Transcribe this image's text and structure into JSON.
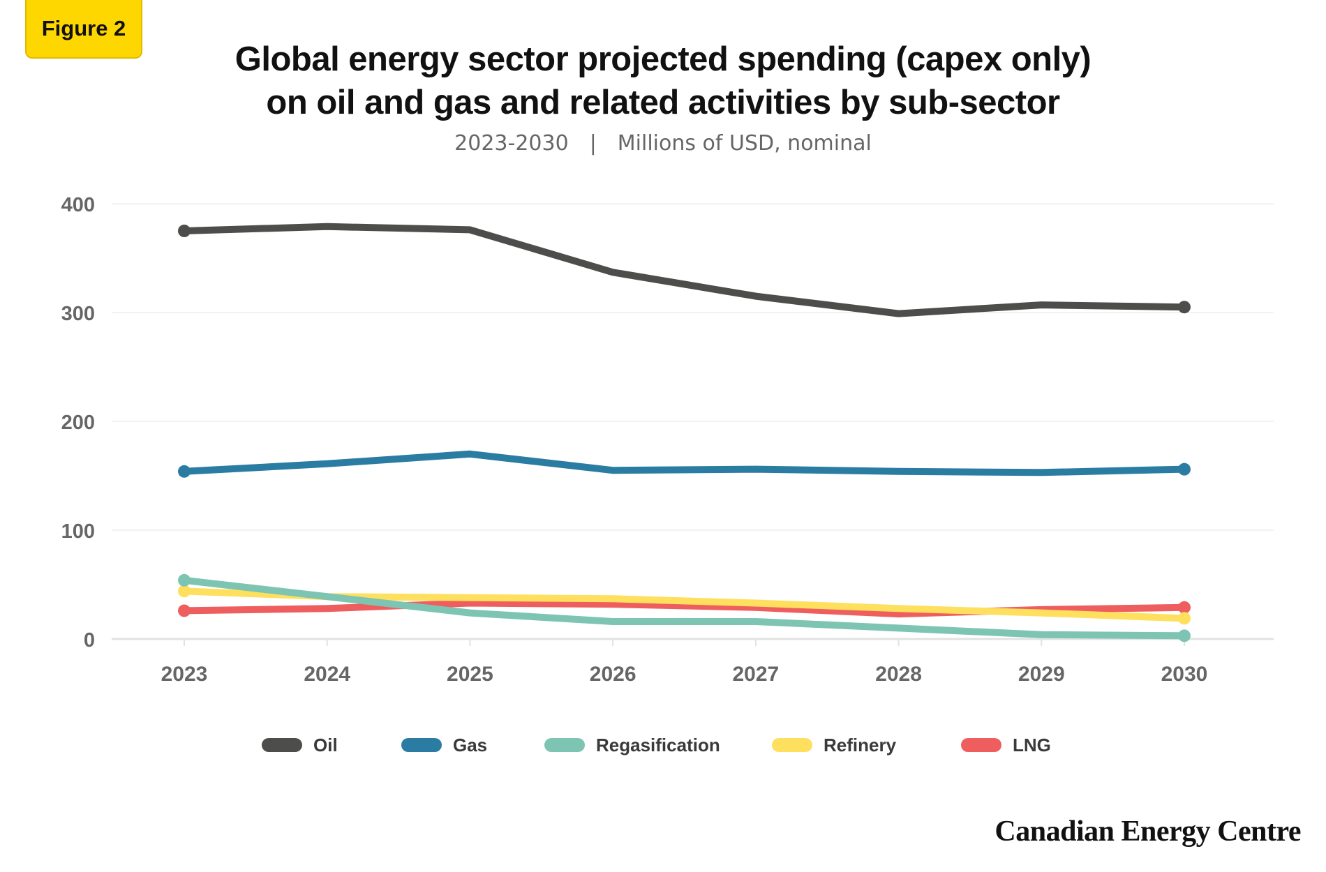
{
  "figure_label": "Figure 2",
  "title_line1": "Global energy sector projected spending (capex only)",
  "title_line2": "on oil and gas and related activities by sub-sector",
  "subtitle_range": "2023-2030",
  "subtitle_separator": "|",
  "subtitle_units": "Millions of USD, nominal",
  "brand": "Canadian Energy Centre",
  "colors": {
    "figure_badge": "#ffd700",
    "axis": "#e2e2e2",
    "grid": "#ededed",
    "tick_text": "#666666"
  },
  "chart_data": {
    "type": "line",
    "title": "Global energy sector projected spending (capex only) on oil and gas and related activities by sub-sector",
    "subtitle": "2023-2030 | Millions of USD, nominal",
    "xlabel": "",
    "ylabel": "",
    "x": [
      "2023",
      "2024",
      "2025",
      "2026",
      "2027",
      "2028",
      "2029",
      "2030"
    ],
    "y_ticks": [
      "0",
      "100",
      "200",
      "300",
      "400"
    ],
    "ylim": [
      0,
      400
    ],
    "grid": true,
    "legend_position": "bottom",
    "series": [
      {
        "name": "Oil",
        "color": "#4d4d4b",
        "values": [
          375,
          379,
          376,
          337,
          315,
          299,
          307,
          305
        ]
      },
      {
        "name": "Gas",
        "color": "#2b7ca3",
        "values": [
          154,
          161,
          170,
          155,
          156,
          154,
          153,
          156
        ]
      },
      {
        "name": "Regasification",
        "color": "#7dc5b2",
        "values": [
          54,
          39,
          24,
          16,
          16,
          10,
          4,
          3
        ]
      },
      {
        "name": "Refinery",
        "color": "#ffdf5e",
        "values": [
          44,
          39,
          38,
          37,
          33,
          28,
          24,
          19
        ]
      },
      {
        "name": "LNG",
        "color": "#ef5e5e",
        "values": [
          26,
          28,
          33,
          32,
          29,
          23,
          27,
          29
        ]
      }
    ]
  }
}
